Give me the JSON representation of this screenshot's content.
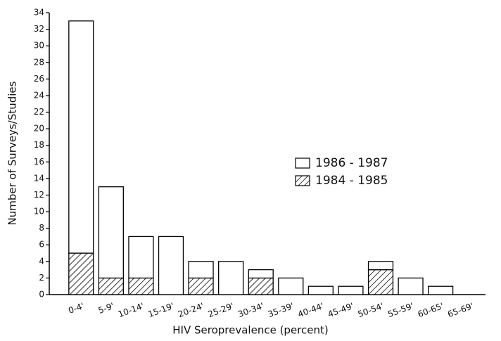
{
  "chart_data": {
    "type": "stacked_bar",
    "x_label": "HIV Seroprevalence (percent)",
    "y_label": "Number of Surveys/Studies",
    "categories": [
      "0-4'",
      "5-9'",
      "10-14'",
      "15-19'",
      "20-24'",
      "25-29'",
      "30-34'",
      "35-39'",
      "40-44'",
      "45-49'",
      "50-54'",
      "55-59'",
      "60-65'",
      "65-69'"
    ],
    "series": [
      {
        "name": "1984 - 1985",
        "color": "#000000",
        "hatch": true,
        "values": [
          5,
          2,
          2,
          0,
          2,
          0,
          2,
          0,
          0,
          0,
          3,
          0,
          0,
          0
        ]
      },
      {
        "name": "1986 - 1987",
        "color": "#ffffff",
        "hatch": false,
        "values": [
          28,
          11,
          5,
          7,
          2,
          4,
          1,
          2,
          1,
          1,
          1,
          2,
          1,
          0
        ]
      }
    ],
    "ylim": [
      0,
      34
    ],
    "yticks": [
      0,
      2,
      4,
      6,
      8,
      10,
      12,
      14,
      16,
      18,
      20,
      22,
      24,
      26,
      28,
      30,
      32,
      34
    ],
    "legend": "center-right"
  }
}
